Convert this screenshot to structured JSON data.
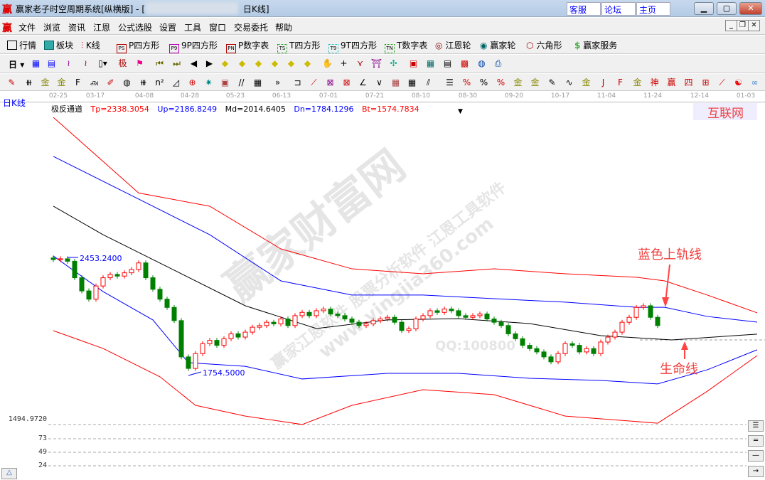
{
  "window": {
    "title": "赢家老子时空周期系统[纵横版] - [",
    "title_suffix": "日K线]",
    "logo": "赢",
    "links": [
      "客服",
      "论坛",
      "主页"
    ],
    "controls": [
      "minimize",
      "maximize",
      "close"
    ]
  },
  "menu": {
    "items": [
      "文件",
      "浏览",
      "资讯",
      "江恩",
      "公式选股",
      "设置",
      "工具",
      "窗口",
      "交易委托",
      "帮助"
    ]
  },
  "toolbar1": {
    "items": [
      {
        "icon": "PS",
        "label": "P四方形"
      },
      {
        "icon": "P9",
        "label": "9P四方形"
      },
      {
        "icon": "PN",
        "label": "P数字表"
      },
      {
        "icon": "TS",
        "label": "T四方形"
      },
      {
        "icon": "T9",
        "label": "9T四方形"
      },
      {
        "icon": "TN",
        "label": "T数字表"
      }
    ],
    "quote": "行情",
    "sector": "板块",
    "kline": "K线",
    "gann_wheel": "江恩轮",
    "yingjia_wheel": "赢家轮",
    "hexagon": "六角形",
    "service": "赢家服务"
  },
  "toolbar2": {
    "period": "日"
  },
  "panel": {
    "period_label": "日K线",
    "indicator": "极反通道",
    "tp": "Tp=2338.3054",
    "up": "Up=2186.8249",
    "md": "Md=2014.6405",
    "dn": "Dn=1784.1296",
    "bt": "Bt=1574.7834",
    "brand": "互联网"
  },
  "annotations": {
    "upper": "蓝色上轨线",
    "life": "生命线"
  },
  "watermark": {
    "main": "赢家财富网",
    "sub": "赢家江恩软件 股票分析软件 江恩工具软件",
    "url": "www.yingjia360.com",
    "qq": "QQ:100800"
  },
  "colors": {
    "up": "#ff0000",
    "down": "#008000",
    "upper_band": "#ff0000",
    "mid_band": "#0000ff",
    "center": "#000000"
  },
  "chart_data": {
    "type": "candlestick",
    "x_ticks": [
      "02-25",
      "03-17",
      "04-08",
      "04-28",
      "05-23",
      "06-13",
      "07-01",
      "07-21",
      "08-10",
      "08-30",
      "09-20",
      "10-17",
      "11-04",
      "11-24",
      "12-14",
      "01-03"
    ],
    "price_labels": {
      "high": "2453.2400",
      "low": "1754.5000",
      "axis_min": "1494.9720"
    },
    "sub_axis": [
      "73",
      "49",
      "24"
    ],
    "closes": [
      2440,
      2445,
      2430,
      2330,
      2250,
      2200,
      2280,
      2330,
      2350,
      2340,
      2360,
      2380,
      2420,
      2330,
      2260,
      2200,
      2150,
      2070,
      1850,
      1780,
      1870,
      1930,
      1950,
      1920,
      1960,
      1990,
      1970,
      2000,
      2030,
      2040,
      2060,
      2050,
      2080,
      2040,
      2100,
      2120,
      2100,
      2130,
      2140,
      2110,
      2100,
      2080,
      2060,
      2040,
      2050,
      2070,
      2080,
      2090,
      2060,
      2010,
      2020,
      2080,
      2100,
      2130,
      2120,
      2140,
      2130,
      2100,
      2090,
      2100,
      2110,
      2080,
      2060,
      2040,
      1990,
      1960,
      1920,
      1900,
      1880,
      1850,
      1820,
      1870,
      1930,
      1920,
      1880,
      1900,
      1870,
      1940,
      1970,
      2000,
      2060,
      2090,
      2150,
      2160,
      2090,
      2040
    ],
    "bands": {
      "tp": [
        [
          0,
          3303
        ],
        [
          12,
          2844
        ],
        [
          22,
          2764
        ],
        [
          32,
          2505
        ],
        [
          42,
          2384
        ],
        [
          52,
          2354
        ],
        [
          62,
          2384
        ],
        [
          72,
          2354
        ],
        [
          82,
          2333
        ],
        [
          86,
          2311
        ],
        [
          92,
          2225
        ],
        [
          99,
          2117
        ]
      ],
      "up": [
        [
          0,
          3066
        ],
        [
          12,
          2807
        ],
        [
          22,
          2591
        ],
        [
          32,
          2311
        ],
        [
          42,
          2225
        ],
        [
          52,
          2225
        ],
        [
          62,
          2203
        ],
        [
          72,
          2182
        ],
        [
          82,
          2151
        ],
        [
          86,
          2151
        ],
        [
          92,
          2095
        ],
        [
          99,
          2061
        ]
      ],
      "md": [
        [
          0,
          2764
        ],
        [
          7,
          2591
        ],
        [
          17,
          2376
        ],
        [
          27,
          2160
        ],
        [
          37,
          2022
        ],
        [
          47,
          2074
        ],
        [
          57,
          2082
        ],
        [
          67,
          2052
        ],
        [
          77,
          1979
        ],
        [
          87,
          1953
        ],
        [
          99,
          1988
        ]
      ],
      "dn": [
        [
          0,
          2462
        ],
        [
          7,
          2246
        ],
        [
          14,
          2074
        ],
        [
          19,
          1815
        ],
        [
          27,
          1793
        ],
        [
          35,
          1716
        ],
        [
          47,
          1750
        ],
        [
          57,
          1750
        ],
        [
          67,
          1720
        ],
        [
          77,
          1707
        ],
        [
          85,
          1686
        ],
        [
          92,
          1772
        ],
        [
          99,
          1893
        ]
      ],
      "bt": [
        [
          0,
          2009
        ],
        [
          7,
          1901
        ],
        [
          15,
          1729
        ],
        [
          20,
          1556
        ],
        [
          27,
          1491
        ],
        [
          35,
          1440
        ],
        [
          42,
          1556
        ],
        [
          52,
          1651
        ],
        [
          62,
          1621
        ],
        [
          72,
          1491
        ],
        [
          85,
          1448
        ],
        [
          92,
          1642
        ],
        [
          99,
          1858
        ]
      ]
    }
  }
}
